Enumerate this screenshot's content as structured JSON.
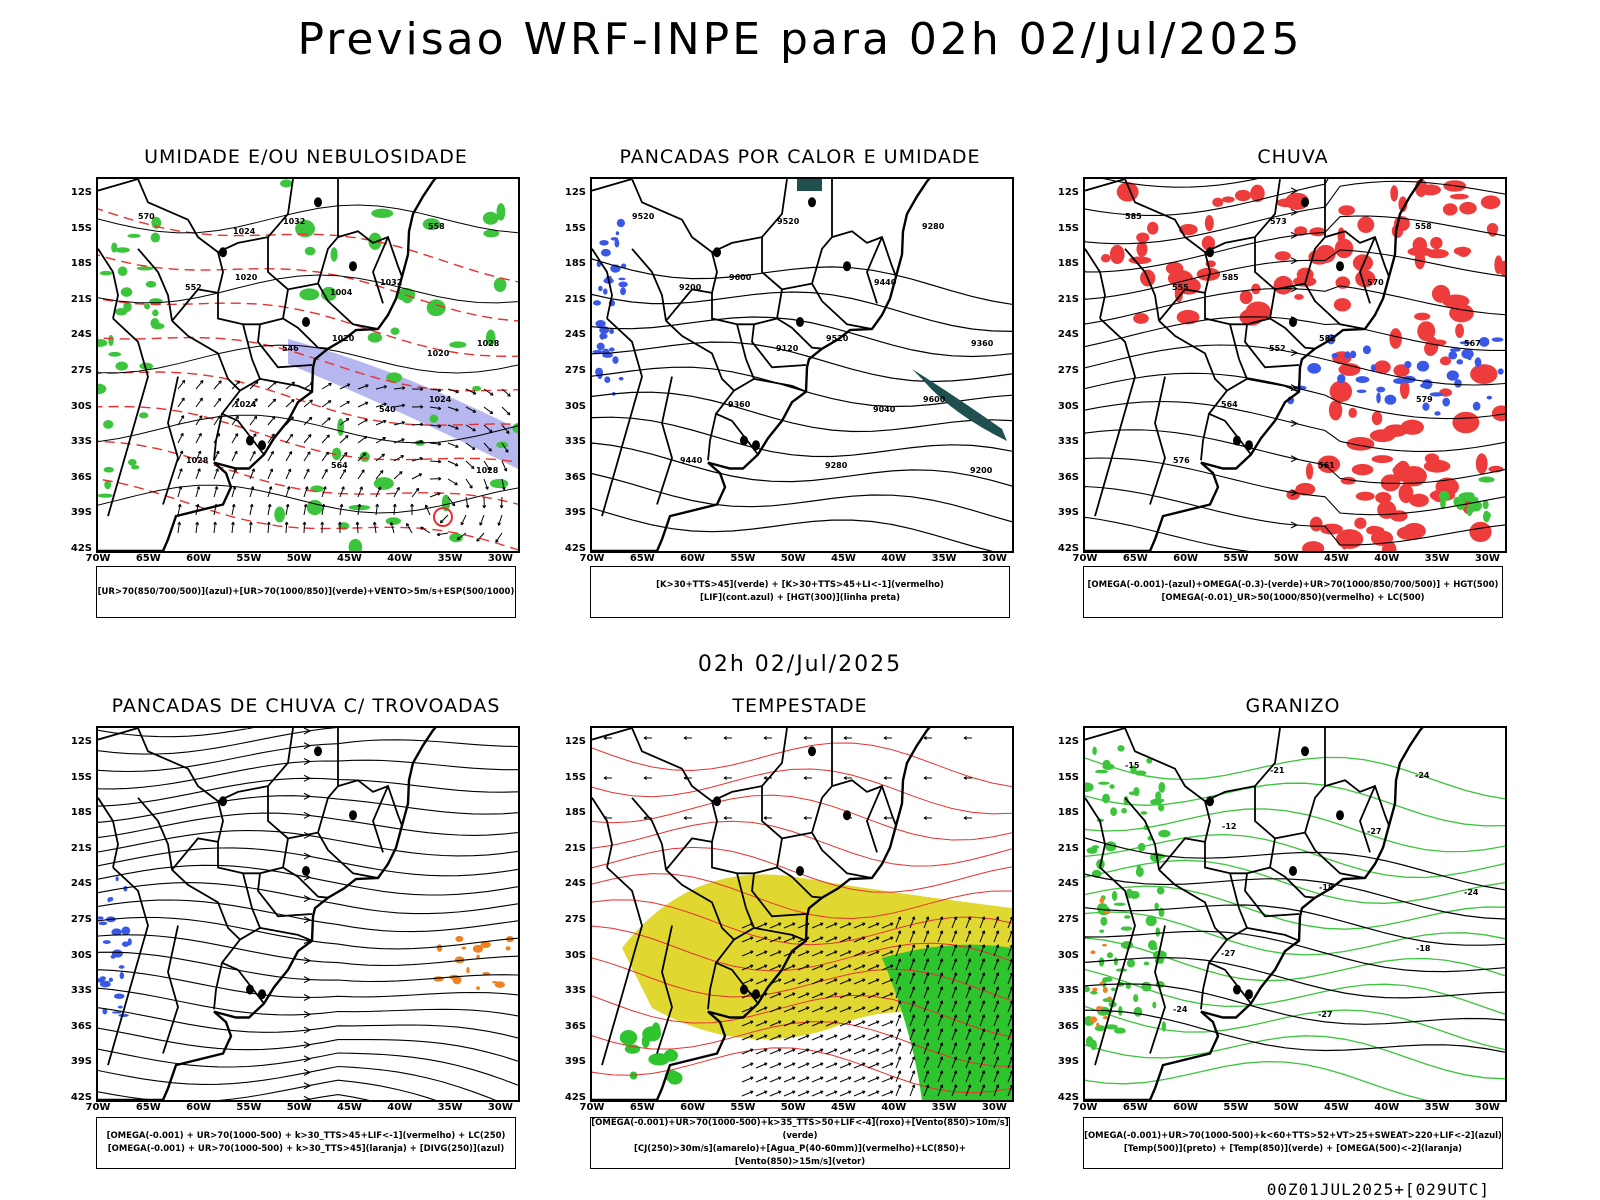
{
  "main_title": "Previsao WRF-INPE  para 02h 02/Jul/2025",
  "mid_date": "02h 02/Jul/2025",
  "footer": "00Z01JUL2025+[029UTC]",
  "lat_ticks": [
    "12S",
    "15S",
    "18S",
    "21S",
    "24S",
    "27S",
    "30S",
    "33S",
    "36S",
    "39S",
    "42S"
  ],
  "lon_ticks": [
    "70W",
    "65W",
    "60W",
    "55W",
    "50W",
    "45W",
    "40W",
    "35W",
    "30W"
  ],
  "panels": [
    {
      "title": "UMIDADE E/OU NEBULOSIDADE",
      "legend": [
        "[UR>70(850/700/500)](azul)+[UR>70(1000/850)](verde)+VENTO>5m/s+ESP(500/1000)"
      ],
      "contour_labels": [
        "570",
        "1020",
        "1020",
        "1024",
        "1028",
        "1032",
        "1032",
        "1028",
        "1024",
        "564",
        "558",
        "552",
        "546",
        "540",
        "1028",
        "1024",
        "1004",
        "1020"
      ]
    },
    {
      "title": "PANCADAS POR CALOR E UMIDADE",
      "legend": [
        "[K>30+TTS>45](verde) + [K>30+TTS>45+LI<-1](vermelho)",
        "[LIF](cont.azul) + [HGT(300)](linha preta)"
      ],
      "contour_labels": [
        "9520",
        "9600",
        "9520",
        "9600",
        "9440",
        "9520",
        "9440",
        "9360",
        "9360",
        "9280",
        "9280",
        "9200",
        "9120",
        "9040",
        "9200"
      ]
    },
    {
      "title": "CHUVA",
      "legend": [
        "[OMEGA(-0.001)-(azul)+OMEGA(-0.3)-(verde)+UR>70(1000/850/700/500)] + HGT(500)",
        "[OMEGA(-0.01)_UR>50(1000/850)(vermelho) + LC(500)"
      ],
      "contour_labels": [
        "585",
        "585",
        "582",
        "579",
        "576",
        "573",
        "570",
        "567",
        "564",
        "561",
        "558",
        "555",
        "552"
      ]
    },
    {
      "title": "PANCADAS DE CHUVA C/ TROVOADAS",
      "legend": [
        "[OMEGA(-0.001) + UR>70(1000-500) + k>30_TTS>45+LIF<-1](vermelho) + LC(250)",
        "[OMEGA(-0.001) + UR>70(1000-500) + k>30_TTS>45](laranja) + [DIVG(250)](azul)"
      ],
      "contour_labels": []
    },
    {
      "title": "TEMPESTADE",
      "legend": [
        "[OMEGA(-0.001)+UR>70(1000-500)+k>35_TTS>50+LIF<-4](roxo)+[Vento(850)>10m/s](verde)",
        "[CJ(250)>30m/s](amarelo)+[Agua_P(40-60mm)](vermelho)+LC(850)+[Vento(850)>15m/s](vetor)"
      ],
      "contour_labels": []
    },
    {
      "title": "GRANIZO",
      "legend": [
        "[OMEGA(-0.001)+UR>70(1000-500)+k<60+TTS>52+VT>25+SWEAT>220+LIF<-2](azul)",
        "[Temp(500)](preto) + [Temp(850)](verde) + [OMEGA(500)<-2](laranja)"
      ],
      "contour_labels": [
        "-15",
        "-12",
        "-18",
        "-18",
        "-24",
        "-21",
        "-27",
        "-24",
        "-27",
        "-27",
        "-24"
      ]
    }
  ]
}
